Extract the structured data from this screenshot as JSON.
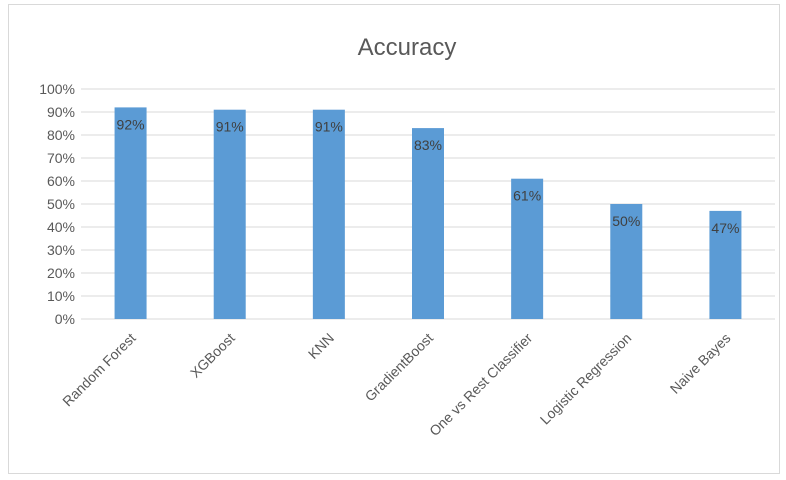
{
  "chart_data": {
    "type": "bar",
    "title": "Accuracy",
    "xlabel": "",
    "ylabel": "",
    "categories": [
      "Random Forest",
      "XGBoost",
      "KNN",
      "GradientBoost",
      "One vs Rest Classifier",
      "Logistic Regression",
      "Naive Bayes"
    ],
    "values": [
      92,
      91,
      91,
      83,
      61,
      50,
      47
    ],
    "data_labels": [
      "92%",
      "91%",
      "91%",
      "83%",
      "61%",
      "50%",
      "47%"
    ],
    "ylim": [
      0,
      100
    ],
    "y_ticks": [
      "0%",
      "10%",
      "20%",
      "30%",
      "40%",
      "50%",
      "60%",
      "70%",
      "80%",
      "90%",
      "100%"
    ],
    "grid": true,
    "bar_color": "#5b9bd5",
    "label_color": "#404040",
    "gridline_color": "#d9d9d9"
  }
}
